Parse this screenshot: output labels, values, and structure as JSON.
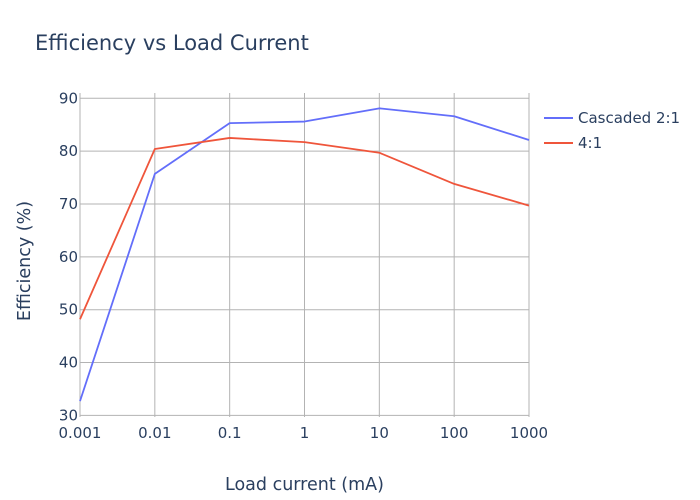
{
  "chart_data": {
    "type": "line",
    "title": "Efficiency vs Load Current",
    "xlabel": "Load current (mA)",
    "ylabel": "Efficiency (%)",
    "x_scale": "log",
    "x": [
      0.001,
      0.01,
      0.1,
      1,
      10,
      100,
      1000
    ],
    "x_tick_labels": [
      "0.001",
      "0.01",
      "0.1",
      "1",
      "10",
      "100",
      "1000"
    ],
    "y_ticks": [
      30,
      40,
      50,
      60,
      70,
      80,
      90
    ],
    "xlim": [
      0.001,
      1000
    ],
    "ylim": [
      29.7,
      91
    ],
    "grid": true,
    "legend_position": "top-right",
    "series": [
      {
        "name": "Cascaded 2:1",
        "color": "#636efa",
        "values": [
          32.7,
          75.7,
          85.3,
          85.6,
          88.1,
          86.6,
          82.1
        ]
      },
      {
        "name": "4:1",
        "color": "#ef553b",
        "values": [
          48.2,
          80.4,
          82.5,
          81.7,
          79.7,
          73.8,
          69.7
        ]
      }
    ]
  }
}
